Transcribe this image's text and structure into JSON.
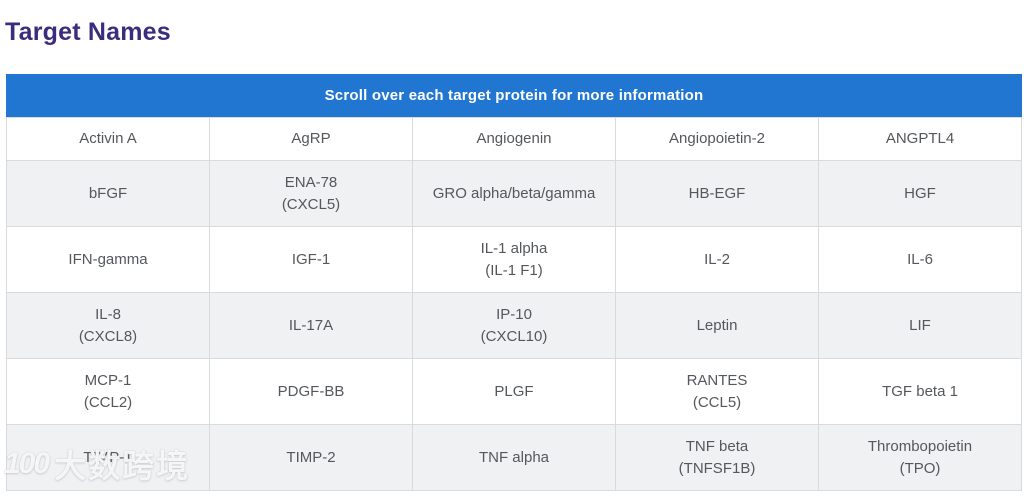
{
  "page": {
    "title": "Target Names"
  },
  "table": {
    "header": "Scroll over each target protein for more information",
    "columns": 5,
    "rows": [
      [
        "Activin A",
        "AgRP",
        "Angiogenin",
        "Angiopoietin-2",
        "ANGPTL4"
      ],
      [
        "bFGF",
        "ENA-78\n(CXCL5)",
        "GRO alpha/beta/gamma",
        "HB-EGF",
        "HGF"
      ],
      [
        "IFN-gamma",
        "IGF-1",
        "IL-1 alpha\n(IL-1 F1)",
        "IL-2",
        "IL-6"
      ],
      [
        "IL-8\n(CXCL8)",
        "IL-17A",
        "IP-10\n(CXCL10)",
        "Leptin",
        "LIF"
      ],
      [
        "MCP-1\n(CCL2)",
        "PDGF-BB",
        "PLGF",
        "RANTES\n(CCL5)",
        "TGF beta 1"
      ],
      [
        "TIMP-1",
        "TIMP-2",
        "TNF alpha",
        "TNF beta\n(TNFSF1B)",
        "Thrombopoietin\n(TPO)"
      ]
    ]
  },
  "watermark": {
    "icon": "100",
    "text": "大数跨境"
  },
  "colors": {
    "heading_purple": "#3c2c7e",
    "header_blue": "#2176d2",
    "header_text": "#ffffff",
    "row_alt_gray": "#f0f1f3",
    "border_gray": "#d9dadc",
    "cell_text": "#54575c"
  }
}
